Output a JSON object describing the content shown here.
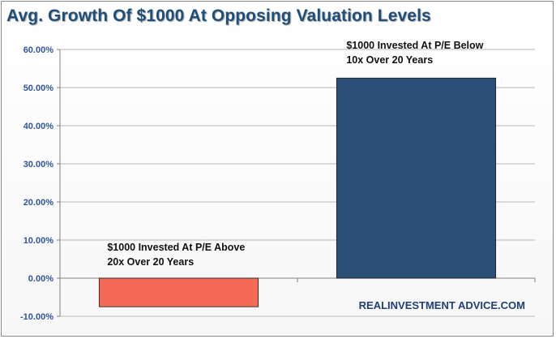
{
  "chart_data": {
    "type": "bar",
    "title": "Avg. Growth Of $1000 At Opposing Valuation Levels",
    "categories": [
      "$1000 Invested At P/E Above 20x Over 20 Years",
      "$1000 Invested At P/E Below 10x Over 20 Years"
    ],
    "values": [
      -7.5,
      52.5
    ],
    "annotations": [
      {
        "lines": [
          "$1000 Invested At P/E Above",
          "20x Over 20 Years"
        ]
      },
      {
        "lines": [
          "$1000 Invested At P/E Below",
          "10x Over 20 Years"
        ]
      }
    ],
    "colors": [
      "#f56a56",
      "#2c4f78"
    ],
    "ylim": [
      -10,
      60
    ],
    "yticks": [
      -10,
      0,
      10,
      20,
      30,
      40,
      50,
      60
    ],
    "ytick_labels": [
      "-10.00%",
      "0.00%",
      "10.00%",
      "20.00%",
      "30.00%",
      "40.00%",
      "50.00%",
      "60.00%"
    ],
    "grid": true,
    "xlabel": "",
    "ylabel": "",
    "watermark": "REALINVESTMENT ADVICE.COM"
  }
}
